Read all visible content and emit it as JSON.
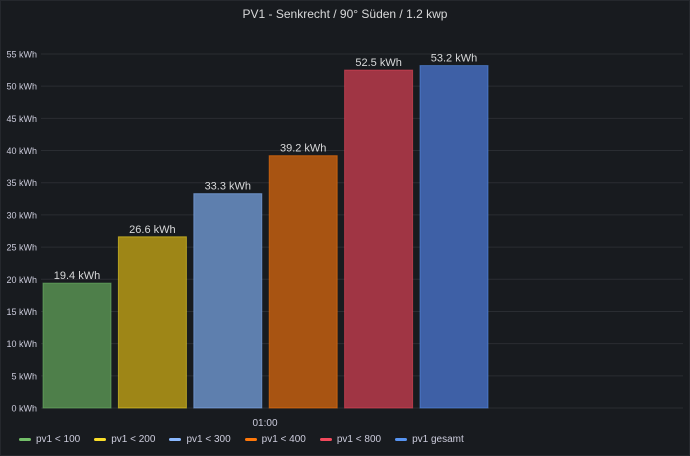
{
  "panel": {
    "title": "PV1 - Senkrecht / 90° Süden / 1.2 kwp"
  },
  "chart_data": {
    "type": "bar",
    "title": "PV1 - Senkrecht / 90° Süden / 1.2 kwp",
    "x_tick": "01:00",
    "unit": "kWh",
    "ylim": [
      0,
      55
    ],
    "y_ticks": [
      "0 kWh",
      "5 kWh",
      "10 kWh",
      "15 kWh",
      "20 kWh",
      "25 kWh",
      "30 kWh",
      "35 kWh",
      "40 kWh",
      "45 kWh",
      "50 kWh",
      "55 kWh"
    ],
    "grid": true,
    "legend_position": "bottom-left",
    "series": [
      {
        "name": "pv1 < 100",
        "value": 19.4,
        "label": "19.4 kWh",
        "color": "#73bf69",
        "fill": "#4e7f4a"
      },
      {
        "name": "pv1 < 200",
        "value": 26.6,
        "label": "26.6 kWh",
        "color": "#fade2a",
        "fill": "#9e8617"
      },
      {
        "name": "pv1 < 300",
        "value": 33.3,
        "label": "33.3 kWh",
        "color": "#8ab8ff",
        "fill": "#5e7fae"
      },
      {
        "name": "pv1 < 400",
        "value": 39.2,
        "label": "39.2 kWh",
        "color": "#ff780a",
        "fill": "#a85412"
      },
      {
        "name": "pv1 < 800",
        "value": 52.5,
        "label": "52.5 kWh",
        "color": "#f2495c",
        "fill": "#a03544"
      },
      {
        "name": "pv1 gesamt",
        "value": 53.2,
        "label": "53.2 kWh",
        "color": "#5794f2",
        "fill": "#3e60a6"
      }
    ]
  }
}
